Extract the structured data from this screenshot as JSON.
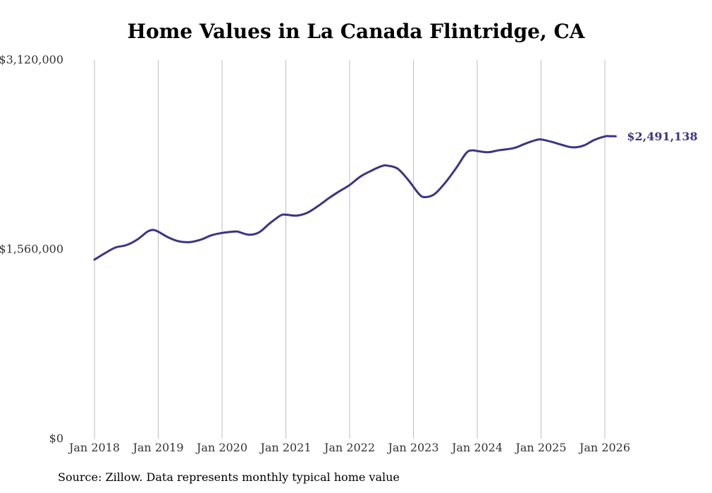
{
  "chart_data": {
    "type": "line",
    "title": "Home Values in La Canada Flintridge, CA",
    "source": "Source: Zillow. Data represents monthly typical home value",
    "ylim": [
      0,
      3120000
    ],
    "yticks": [
      {
        "value": 0,
        "label": "$0"
      },
      {
        "value": 1560000,
        "label": "$1,560,000"
      },
      {
        "value": 3120000,
        "label": "$3,120,000"
      }
    ],
    "xlim": [
      2018.0,
      2026.17
    ],
    "xticks": [
      {
        "value": 2018,
        "label": "Jan 2018"
      },
      {
        "value": 2019,
        "label": "Jan 2019"
      },
      {
        "value": 2020,
        "label": "Jan 2020"
      },
      {
        "value": 2021,
        "label": "Jan 2021"
      },
      {
        "value": 2022,
        "label": "Jan 2022"
      },
      {
        "value": 2023,
        "label": "Jan 2023"
      },
      {
        "value": 2024,
        "label": "Jan 2024"
      },
      {
        "value": 2025,
        "label": "Jan 2025"
      },
      {
        "value": 2026,
        "label": "Jan 2026"
      }
    ],
    "grid": "vertical",
    "series": [
      {
        "name": "Typical home value",
        "color": "#3b3486",
        "end_label": "$2,491,138",
        "x": [
          2018.0,
          2018.17,
          2018.33,
          2018.5,
          2018.67,
          2018.83,
          2018.92,
          2019.0,
          2019.17,
          2019.33,
          2019.5,
          2019.67,
          2019.83,
          2020.0,
          2020.17,
          2020.25,
          2020.42,
          2020.58,
          2020.75,
          2020.92,
          2021.0,
          2021.17,
          2021.33,
          2021.5,
          2021.67,
          2021.83,
          2022.0,
          2022.17,
          2022.33,
          2022.5,
          2022.58,
          2022.75,
          2022.92,
          2023.08,
          2023.17,
          2023.33,
          2023.5,
          2023.67,
          2023.83,
          2023.92,
          2024.0,
          2024.17,
          2024.33,
          2024.58,
          2024.75,
          2024.92,
          2025.0,
          2025.17,
          2025.33,
          2025.5,
          2025.67,
          2025.83,
          2026.0,
          2026.08,
          2026.17
        ],
        "values": [
          1475000,
          1530000,
          1575000,
          1595000,
          1640000,
          1705000,
          1720000,
          1705000,
          1655000,
          1625000,
          1620000,
          1640000,
          1675000,
          1695000,
          1705000,
          1705000,
          1680000,
          1700000,
          1775000,
          1840000,
          1845000,
          1838000,
          1860000,
          1915000,
          1980000,
          2035000,
          2090000,
          2160000,
          2205000,
          2245000,
          2250000,
          2225000,
          2130000,
          2020000,
          1990000,
          2015000,
          2110000,
          2230000,
          2355000,
          2375000,
          2370000,
          2360000,
          2375000,
          2395000,
          2430000,
          2460000,
          2465000,
          2445000,
          2420000,
          2400000,
          2415000,
          2460000,
          2490000,
          2492000,
          2491138
        ]
      }
    ]
  }
}
